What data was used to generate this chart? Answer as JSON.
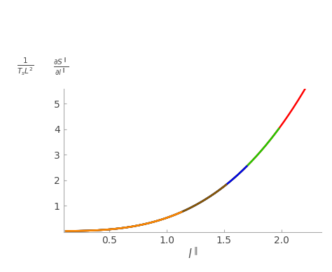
{
  "title": "",
  "xlabel": "$l^{\\parallel}$",
  "xlim": [
    0.1,
    2.35
  ],
  "ylim": [
    -0.05,
    5.6
  ],
  "xticks": [
    0.5,
    1.0,
    1.5,
    2.0
  ],
  "yticks": [
    1,
    2,
    3,
    4,
    5
  ],
  "curves": [
    {
      "color": "#ff0000",
      "l_max": 2.28,
      "l_min": 0.12,
      "power": 3.0,
      "scale": 0.52
    },
    {
      "color": "#22cc00",
      "l_max": 1.98,
      "l_min": 0.12,
      "power": 3.0,
      "scale": 0.52
    },
    {
      "color": "#0000ee",
      "l_max": 1.7,
      "l_min": 0.12,
      "power": 3.0,
      "scale": 0.52
    },
    {
      "color": "#8B5A00",
      "l_max": 1.52,
      "l_min": 0.12,
      "power": 3.0,
      "scale": 0.52
    },
    {
      "color": "#ff8800",
      "l_max": 1.13,
      "l_min": 0.12,
      "power": 3.0,
      "scale": 0.52
    }
  ],
  "background_color": "#ffffff",
  "figsize": [
    4.74,
    3.89
  ],
  "dpi": 100
}
